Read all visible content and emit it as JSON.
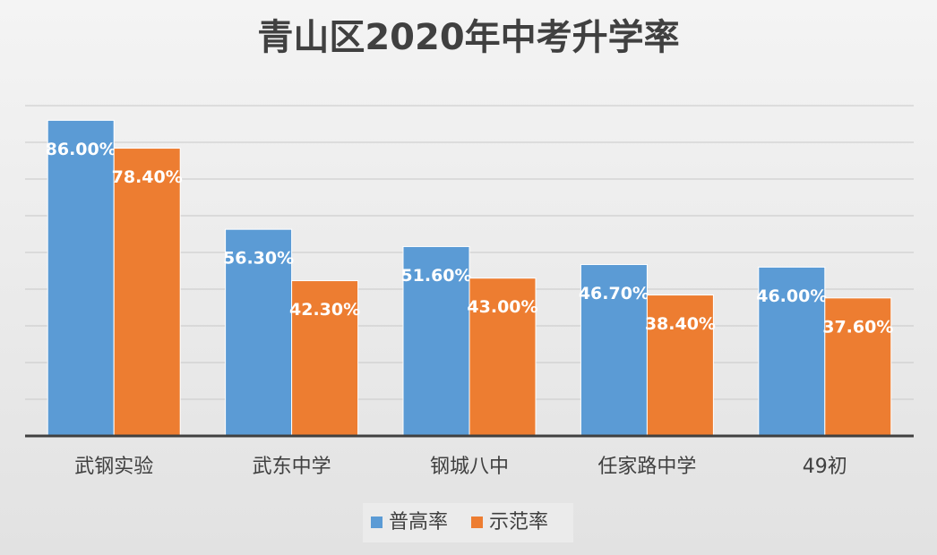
{
  "chart_data": {
    "type": "bar",
    "title": "青山区2020年中考升学率",
    "categories": [
      "武钢实验",
      "武东中学",
      "钢城八中",
      "任家路中学",
      "49初"
    ],
    "series": [
      {
        "name": "普高率",
        "color": "#5b9bd5",
        "values": [
          86,
          56.3,
          51.6,
          46.7,
          46
        ],
        "value_labels": [
          "86.00%",
          "56.30%",
          "51.60%",
          "46.70%",
          "46.00%"
        ]
      },
      {
        "name": "示范率",
        "color": "#ed7d31",
        "values": [
          78.4,
          42.3,
          43,
          38.4,
          37.6
        ],
        "value_labels": [
          "78.40%",
          "42.30%",
          "43.00%",
          "38.40%",
          "37.60%"
        ]
      }
    ],
    "ylim": [
      0,
      90
    ],
    "yticks": [
      0,
      10,
      20,
      30,
      40,
      50,
      60,
      70,
      80,
      90
    ],
    "grid": true,
    "legend": "bottom"
  }
}
